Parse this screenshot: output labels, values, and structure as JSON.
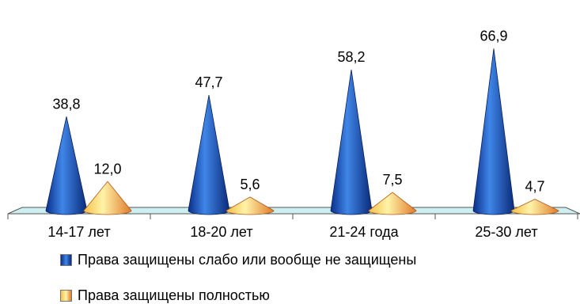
{
  "chart_data": {
    "type": "bar",
    "title": "",
    "xlabel": "",
    "ylabel": "",
    "ylim": [
      0,
      70
    ],
    "grid": false,
    "legend_position": "bottom",
    "categories": [
      "14-17 лет",
      "18-20 лет",
      "21-24 года",
      "25-30 лет"
    ],
    "series": [
      {
        "name": "Права защищены слабо или вообще не защищены",
        "values": [
          38.8,
          47.7,
          58.2,
          66.9
        ],
        "labels": [
          "38,8",
          "47,7",
          "58,2",
          "66,9"
        ],
        "color": "#1f52b0"
      },
      {
        "name": "Права защищены полностью",
        "values": [
          12.0,
          5.6,
          7.5,
          4.7
        ],
        "labels": [
          "12,0",
          "5,6",
          "7,5",
          "4,7"
        ],
        "color": "#f0a040"
      }
    ]
  },
  "colors": {
    "floor": "#cdeff0",
    "blue_light": "#3f7fe0",
    "blue_dark": "#0a2a78",
    "orange_light": "#fff0a0",
    "orange_dark": "#e07a2a"
  }
}
